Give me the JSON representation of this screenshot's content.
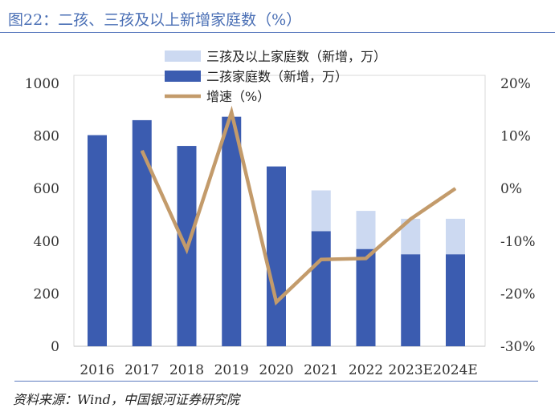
{
  "figure": {
    "title": "图22：二孩、三孩及以上新增家庭数（%）",
    "source": "资料来源：Wind，中国银河证券研究院"
  },
  "chart_data": {
    "type": "bar",
    "categories": [
      "2016",
      "2017",
      "2018",
      "2019",
      "2020",
      "2021",
      "2022",
      "2023E",
      "2024E"
    ],
    "series": [
      {
        "name": "二孩家庭数（新增，万）",
        "kind": "bar-stacked",
        "axis": "left",
        "color": "#3b5cb0",
        "values": [
          803,
          860,
          762,
          873,
          684,
          438,
          370,
          350,
          350
        ]
      },
      {
        "name": "三孩及以上家庭数（新增，万）",
        "kind": "bar-stacked",
        "axis": "left",
        "color": "#ccd9f1",
        "values": [
          0,
          0,
          0,
          0,
          0,
          155,
          145,
          135,
          135
        ]
      },
      {
        "name": "增速（%）",
        "kind": "line",
        "axis": "right",
        "color": "#c39b6b",
        "values": [
          null,
          7.2,
          -11.6,
          14.5,
          -21.6,
          -13.5,
          -13.3,
          -5.8,
          0.0
        ]
      }
    ],
    "legend_order": [
      "三孩及以上家庭数（新增，万）",
      "二孩家庭数（新增，万）",
      "增速（%）"
    ],
    "legend_position": "top-center",
    "ylim_left": [
      0,
      1000
    ],
    "yticks_left": [
      0,
      200,
      400,
      600,
      800,
      1000
    ],
    "ytick_labels_left": [
      "0",
      "200",
      "400",
      "600",
      "800",
      "1000"
    ],
    "ylim_right": [
      -30,
      20
    ],
    "yticks_right": [
      -30,
      -20,
      -10,
      0,
      10,
      20
    ],
    "ytick_labels_right": [
      "-30%",
      "-20%",
      "-10%",
      "0%",
      "10%",
      "20%"
    ],
    "xlabel": "",
    "ylabel": "",
    "grid": false
  }
}
